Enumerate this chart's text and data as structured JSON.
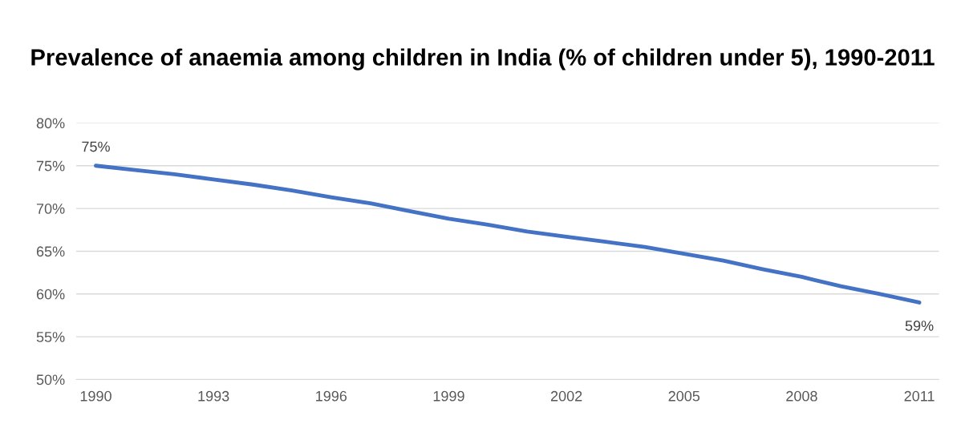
{
  "chart_data": {
    "type": "line",
    "title": "Prevalence of anaemia among children in India (% of children under 5), 1990-2011",
    "x": [
      1990,
      1991,
      1992,
      1993,
      1994,
      1995,
      1996,
      1997,
      1998,
      1999,
      2000,
      2001,
      2002,
      2003,
      2004,
      2005,
      2006,
      2007,
      2008,
      2009,
      2010,
      2011
    ],
    "series": [
      {
        "color": "#4472c4",
        "values": [
          75,
          74.5,
          74.0,
          73.4,
          72.8,
          72.1,
          71.3,
          70.6,
          69.7,
          68.8,
          68.1,
          67.3,
          66.7,
          66.1,
          65.5,
          64.7,
          63.9,
          62.9,
          62.0,
          60.9,
          60.0,
          59.0
        ],
        "value_labels": [
          "75%",
          null,
          null,
          null,
          null,
          null,
          null,
          null,
          null,
          null,
          null,
          null,
          null,
          null,
          null,
          null,
          null,
          null,
          null,
          null,
          null,
          "59%"
        ]
      }
    ],
    "xlim": [
      1989.5,
      2011.5
    ],
    "xticks": [
      1990,
      1993,
      1996,
      1999,
      2002,
      2005,
      2008,
      2011
    ],
    "ylim": [
      50,
      80
    ],
    "yticks": [
      {
        "value": 50,
        "label": "50%"
      },
      {
        "value": 55,
        "label": "55%"
      },
      {
        "value": 60,
        "label": "60%"
      },
      {
        "value": 65,
        "label": "65%"
      },
      {
        "value": 70,
        "label": "70%"
      },
      {
        "value": 75,
        "label": "75%"
      },
      {
        "value": 80,
        "label": "80%"
      }
    ],
    "grid": "y",
    "marker": "none",
    "line_style": "solid"
  }
}
